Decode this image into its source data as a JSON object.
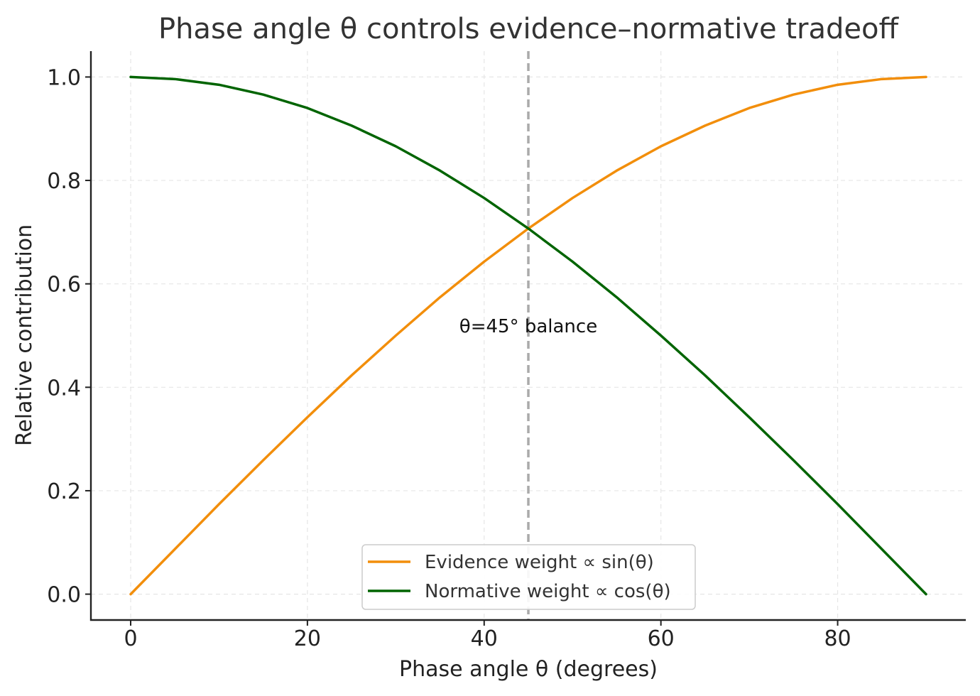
{
  "chart_data": {
    "type": "line",
    "title": "Phase angle θ controls evidence–normative tradeoff",
    "xlabel": "Phase angle θ (degrees)",
    "ylabel": "Relative contribution",
    "xlim": [
      -4.5,
      94.5
    ],
    "ylim": [
      -0.05,
      1.05
    ],
    "xticks": [
      0,
      20,
      40,
      60,
      80
    ],
    "yticks": [
      0.0,
      0.2,
      0.4,
      0.6,
      0.8,
      1.0
    ],
    "xtick_labels": [
      "0",
      "20",
      "40",
      "60",
      "80"
    ],
    "ytick_labels": [
      "0.0",
      "0.2",
      "0.4",
      "0.6",
      "0.8",
      "1.0"
    ],
    "grid": true,
    "x": [
      0,
      5,
      10,
      15,
      20,
      25,
      30,
      35,
      40,
      45,
      50,
      55,
      60,
      65,
      70,
      75,
      80,
      85,
      90
    ],
    "series": [
      {
        "name": "Evidence weight ∝ sin(θ)",
        "color": "#f28e0b",
        "values": [
          0.0,
          0.087,
          0.174,
          0.259,
          0.342,
          0.423,
          0.5,
          0.574,
          0.643,
          0.707,
          0.766,
          0.819,
          0.866,
          0.906,
          0.94,
          0.966,
          0.985,
          0.996,
          1.0
        ]
      },
      {
        "name": "Normative weight ∝ cos(θ)",
        "color": "#006400",
        "values": [
          1.0,
          0.996,
          0.985,
          0.966,
          0.94,
          0.906,
          0.866,
          0.819,
          0.766,
          0.707,
          0.643,
          0.574,
          0.5,
          0.423,
          0.342,
          0.259,
          0.174,
          0.087,
          0.0
        ]
      }
    ],
    "reference_line": {
      "x": 45,
      "color": "#aaaaaa",
      "style": "dashed"
    },
    "annotation": {
      "text": "θ=45° balance",
      "x": 45,
      "y": 0.52
    },
    "legend_position": "lower-center"
  }
}
